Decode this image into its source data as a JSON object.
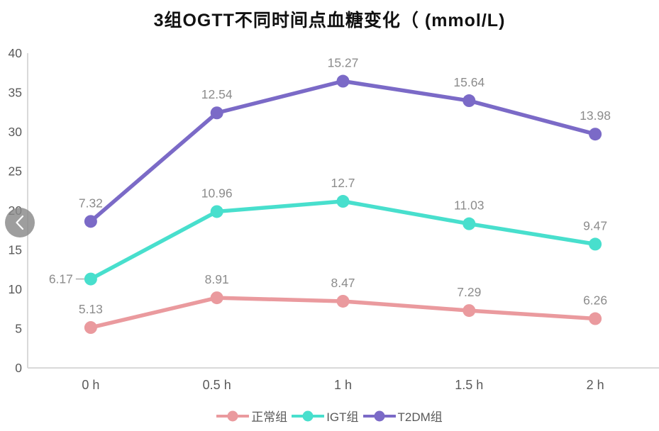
{
  "nav": {
    "prev_button": {
      "icon": "chevron-left",
      "circle_color": "#898989",
      "glyph_color": "#ffffff"
    }
  },
  "chart_data": {
    "type": "line",
    "stacked": true,
    "title": "3组OGTT不同时间点血糖变化（ (mmol/L)",
    "categories": [
      "0 h",
      "0.5 h",
      "1 h",
      "1.5 h",
      "2 h"
    ],
    "series": [
      {
        "name": "正常组",
        "color": "#ea9a9e",
        "values": [
          5.13,
          8.91,
          8.47,
          7.29,
          6.26
        ],
        "label_positions": [
          "above",
          "above",
          "above",
          "above",
          "above"
        ]
      },
      {
        "name": "IGT组",
        "color": "#48dfcd",
        "values": [
          6.17,
          10.96,
          12.7,
          11.03,
          9.47
        ],
        "label_positions": [
          "left",
          "above",
          "above",
          "above",
          "above"
        ]
      },
      {
        "name": "T2DM组",
        "color": "#7b6ac7",
        "values": [
          7.32,
          12.54,
          15.27,
          15.64,
          13.98
        ],
        "label_positions": [
          "above",
          "above",
          "above",
          "above",
          "above"
        ]
      }
    ],
    "y_axis": {
      "min": 0,
      "max": 40,
      "step": 5,
      "tick_labels": [
        "0",
        "5",
        "10",
        "15",
        "20",
        "25",
        "30",
        "35",
        "40"
      ]
    },
    "grid": false,
    "legend_position": "bottom",
    "colors": {
      "axis_line": "#d9d9d9",
      "tick_label": "#595959",
      "x_label": "#595959",
      "data_label": "#8c8c8c",
      "leader_line": "#aeaeae",
      "title": "#111111"
    }
  }
}
